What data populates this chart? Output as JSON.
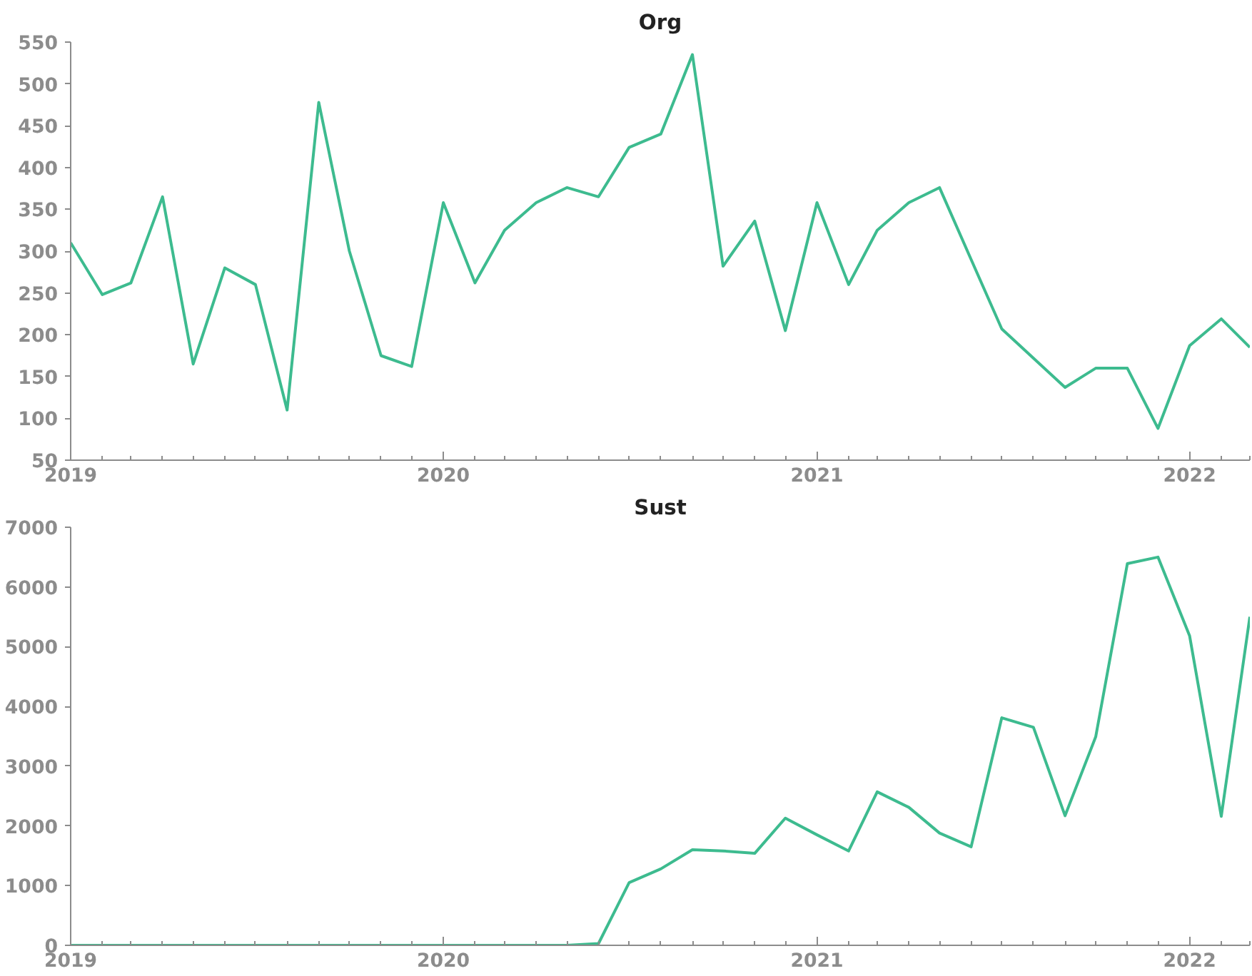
{
  "chart_data": [
    {
      "type": "line",
      "title": "Org",
      "x": [
        "2019-01",
        "2019-02",
        "2019-03",
        "2019-04",
        "2019-05",
        "2019-06",
        "2019-07",
        "2019-08",
        "2019-09",
        "2019-10",
        "2019-11",
        "2019-12",
        "2020-01",
        "2020-02",
        "2020-03",
        "2020-04",
        "2020-05",
        "2020-06",
        "2020-07",
        "2020-08",
        "2020-09",
        "2020-10",
        "2020-11",
        "2020-12",
        "2021-01",
        "2021-02",
        "2021-03",
        "2021-04",
        "2021-05",
        "2021-06",
        "2021-07",
        "2021-08",
        "2021-09",
        "2021-10",
        "2021-11",
        "2021-12",
        "2022-01",
        "2022-02",
        "2022-03"
      ],
      "series": [
        {
          "color": "#3dbb8f",
          "values": [
            310,
            248,
            262,
            365,
            165,
            280,
            260,
            110,
            478,
            300,
            175,
            162,
            358,
            262,
            325,
            358,
            376,
            365,
            424,
            440,
            535,
            282,
            336,
            205,
            358,
            260,
            325,
            358,
            376,
            290,
            207,
            172,
            137,
            160,
            160,
            88,
            187,
            219,
            185
          ]
        }
      ],
      "xlim": [
        "2019-01",
        "2022-03"
      ],
      "xticks": [
        {
          "value": "2019-01",
          "label": "2019"
        },
        {
          "value": "2020-01",
          "label": "2020"
        },
        {
          "value": "2021-01",
          "label": "2021"
        },
        {
          "value": "2022-01",
          "label": "2022"
        }
      ],
      "ylim": [
        50,
        550
      ],
      "yticks": [
        50,
        100,
        150,
        200,
        250,
        300,
        350,
        400,
        450,
        500,
        550
      ]
    },
    {
      "type": "line",
      "title": "Sust",
      "x": [
        "2019-01",
        "2019-02",
        "2019-03",
        "2019-04",
        "2019-05",
        "2019-06",
        "2019-07",
        "2019-08",
        "2019-09",
        "2019-10",
        "2019-11",
        "2019-12",
        "2020-01",
        "2020-02",
        "2020-03",
        "2020-04",
        "2020-05",
        "2020-06",
        "2020-07",
        "2020-08",
        "2020-09",
        "2020-10",
        "2020-11",
        "2020-12",
        "2021-01",
        "2021-02",
        "2021-03",
        "2021-04",
        "2021-05",
        "2021-06",
        "2021-07",
        "2021-08",
        "2021-09",
        "2021-10",
        "2021-11",
        "2021-12",
        "2022-01",
        "2022-02",
        "2022-03"
      ],
      "series": [
        {
          "color": "#3dbb8f",
          "values": [
            0,
            0,
            0,
            0,
            0,
            0,
            0,
            0,
            0,
            0,
            0,
            0,
            0,
            0,
            0,
            0,
            0,
            30,
            1050,
            1280,
            1600,
            1580,
            1540,
            2130,
            1850,
            1580,
            2570,
            2310,
            1880,
            1650,
            3810,
            3650,
            2170,
            3490,
            6390,
            6500,
            5180,
            2160,
            5500
          ]
        }
      ],
      "xlim": [
        "2019-01",
        "2022-03"
      ],
      "xticks": [
        {
          "value": "2019-01",
          "label": "2019"
        },
        {
          "value": "2020-01",
          "label": "2020"
        },
        {
          "value": "2021-01",
          "label": "2021"
        },
        {
          "value": "2022-01",
          "label": "2022"
        }
      ],
      "ylim": [
        0,
        7000
      ],
      "yticks": [
        0,
        1000,
        2000,
        3000,
        4000,
        5000,
        6000,
        7000
      ]
    }
  ]
}
